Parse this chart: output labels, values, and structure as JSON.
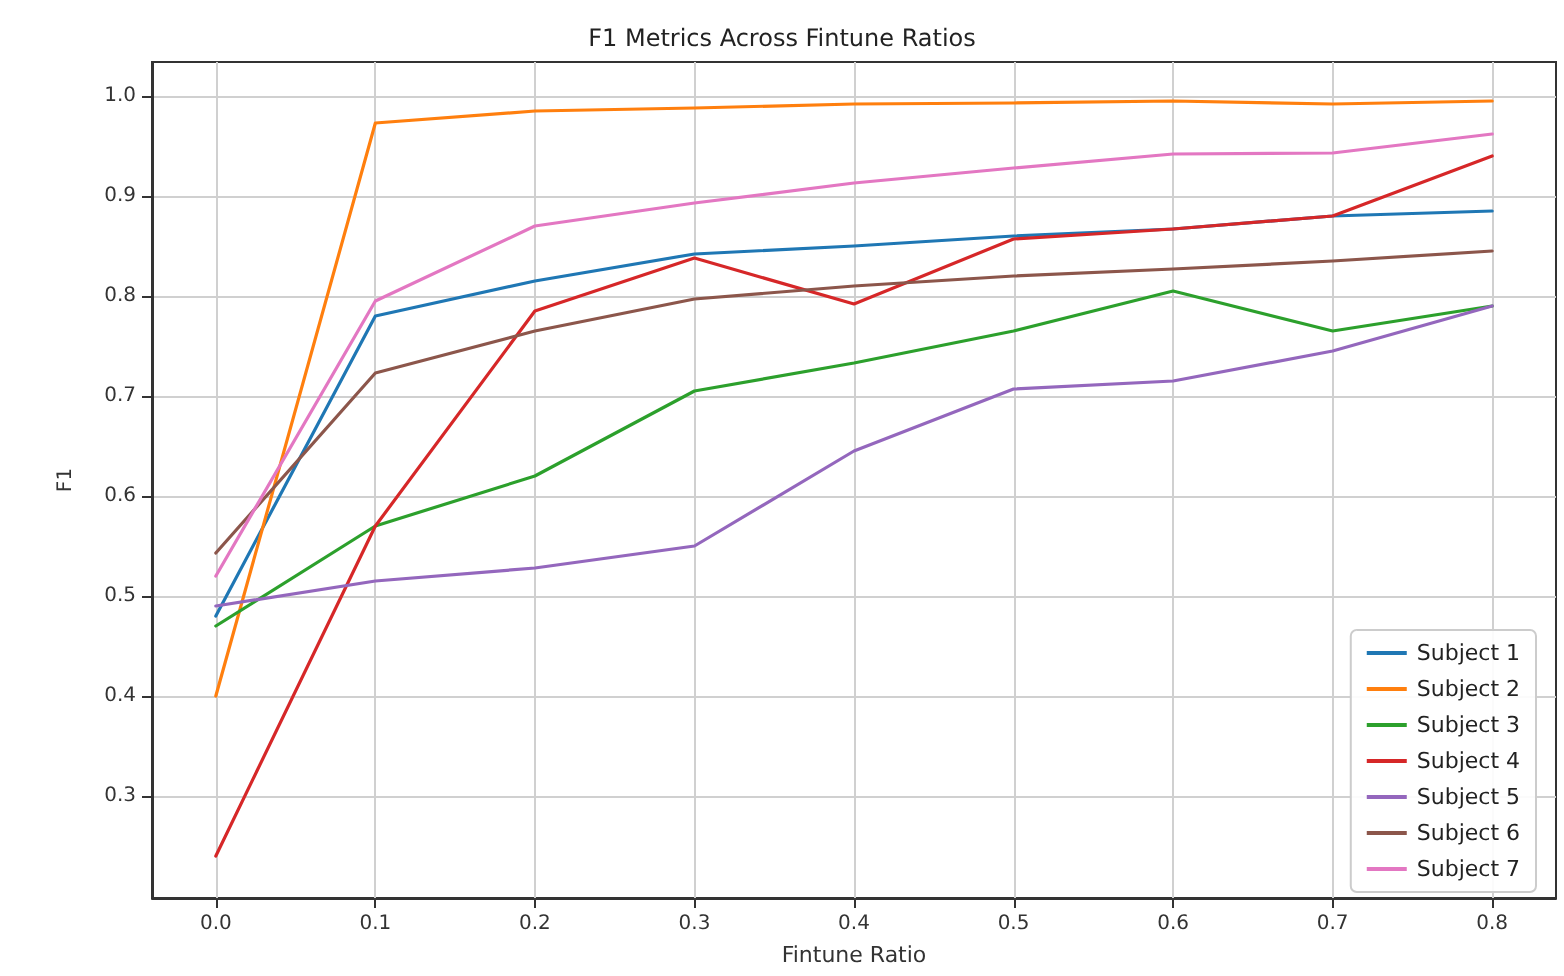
{
  "chart_data": {
    "type": "line",
    "title": "F1 Metrics Across Fintune Ratios",
    "xlabel": "Fintune Ratio",
    "ylabel": "F1",
    "x": [
      0.0,
      0.1,
      0.2,
      0.3,
      0.4,
      0.5,
      0.6,
      0.7,
      0.8
    ],
    "series": [
      {
        "name": "Subject 1",
        "color": "#1f77b4",
        "values": [
          0.48,
          0.78,
          0.815,
          0.842,
          0.85,
          0.86,
          0.867,
          0.88,
          0.885
        ]
      },
      {
        "name": "Subject 2",
        "color": "#ff7f0e",
        "values": [
          0.4,
          0.973,
          0.985,
          0.988,
          0.992,
          0.993,
          0.995,
          0.992,
          0.995
        ]
      },
      {
        "name": "Subject 3",
        "color": "#2ca02c",
        "values": [
          0.47,
          0.57,
          0.62,
          0.705,
          0.733,
          0.765,
          0.805,
          0.765,
          0.79
        ]
      },
      {
        "name": "Subject 4",
        "color": "#d62728",
        "values": [
          0.24,
          0.57,
          0.785,
          0.838,
          0.792,
          0.857,
          0.867,
          0.88,
          0.94
        ]
      },
      {
        "name": "Subject 5",
        "color": "#9467bd",
        "values": [
          0.49,
          0.515,
          0.528,
          0.55,
          0.645,
          0.707,
          0.715,
          0.745,
          0.79
        ]
      },
      {
        "name": "Subject 6",
        "color": "#8c564b",
        "values": [
          0.543,
          0.723,
          0.765,
          0.797,
          0.81,
          0.82,
          0.827,
          0.835,
          0.845
        ]
      },
      {
        "name": "Subject 7",
        "color": "#e377c2",
        "values": [
          0.52,
          0.795,
          0.87,
          0.893,
          0.913,
          0.928,
          0.942,
          0.943,
          0.962
        ]
      }
    ],
    "xlim": [
      -0.04,
      0.84
    ],
    "xticks": [
      {
        "value": 0,
        "label": "0.0"
      },
      0.1,
      0.2,
      0.3,
      0.4,
      0.5,
      0.6,
      0.7,
      0.8
    ],
    "ylim": [
      0.198,
      1.034
    ],
    "yticks": [
      0.3,
      0.4,
      0.5,
      0.6,
      0.7,
      0.8,
      0.9,
      {
        "value": 1,
        "label": "1.0"
      }
    ],
    "grid": true,
    "legend": "bottom right",
    "marker": "none",
    "line_style": "solid"
  }
}
